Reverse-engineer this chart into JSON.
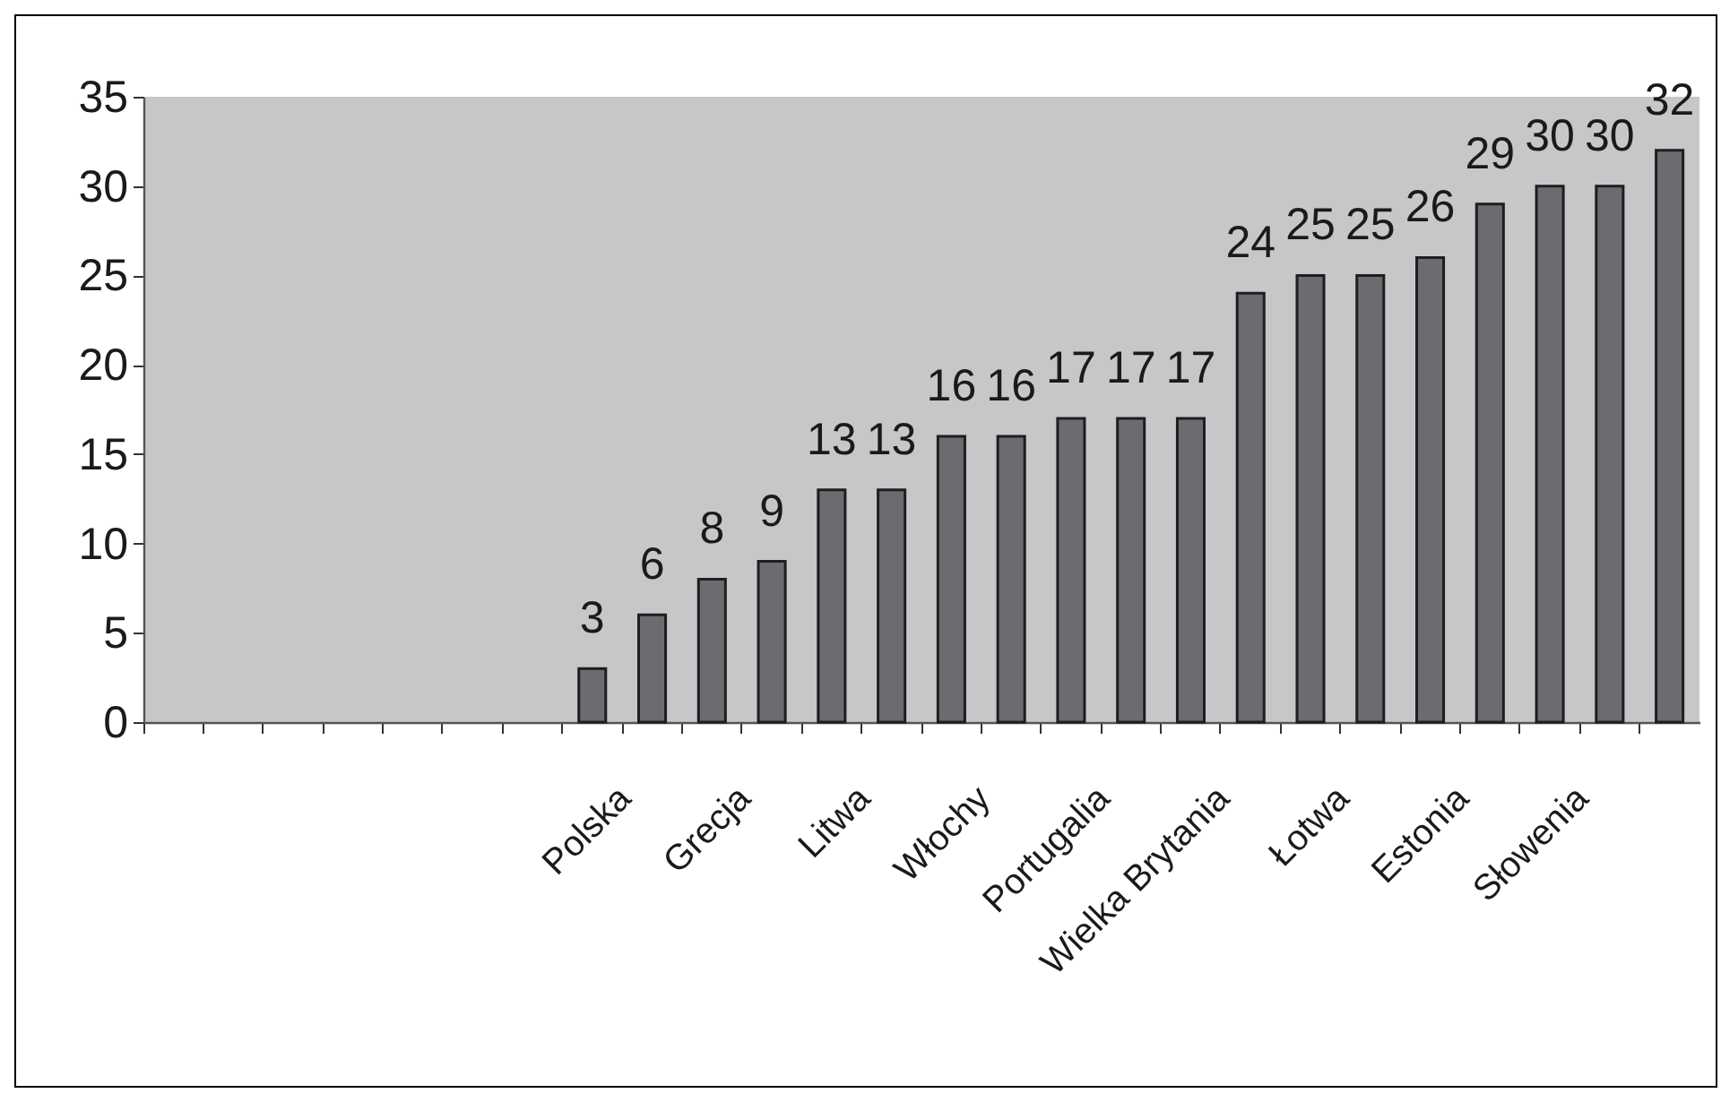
{
  "chart_data": {
    "type": "bar",
    "categories": [
      null,
      null,
      null,
      null,
      null,
      null,
      null,
      null,
      "Polska",
      null,
      "Grecja",
      null,
      "Litwa",
      null,
      "Włochy",
      null,
      "Portugalia",
      null,
      "Wielka Brytania",
      null,
      "Łotwa",
      null,
      "Estonia",
      null,
      "Słowenia",
      null
    ],
    "values": [
      null,
      null,
      null,
      null,
      null,
      null,
      null,
      3,
      6,
      8,
      9,
      13,
      13,
      16,
      16,
      17,
      17,
      17,
      24,
      25,
      25,
      26,
      29,
      30,
      30,
      32
    ],
    "color": "#6b6c70",
    "ylim": [
      0,
      35
    ],
    "yticks": [
      0,
      5,
      10,
      15,
      20,
      25,
      30,
      35
    ],
    "data_labels": true
  }
}
